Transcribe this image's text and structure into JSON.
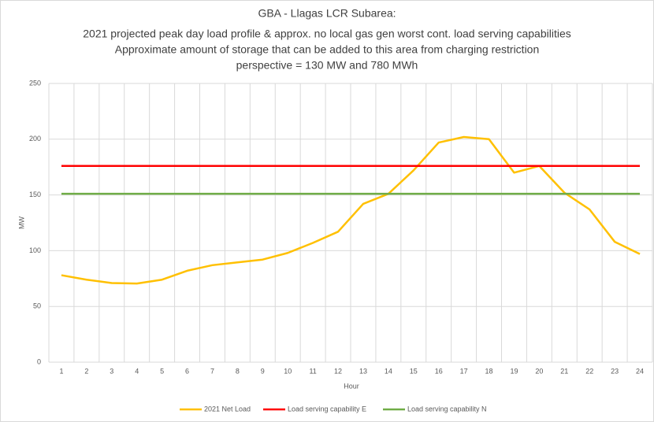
{
  "chart_data": {
    "type": "line",
    "title": "GBA - Llagas LCR Subarea:",
    "subtitle": [
      "2021 projected peak day load profile & approx. no local gas gen worst cont. load serving capabilities",
      "Approximate amount of storage that can be added to this area from charging restriction",
      "perspective = 130 MW and 780 MWh"
    ],
    "x_label": "Hour",
    "y_label": "MW",
    "categories": [
      "1",
      "2",
      "3",
      "4",
      "5",
      "6",
      "7",
      "8",
      "9",
      "10",
      "11",
      "12",
      "13",
      "14",
      "15",
      "16",
      "17",
      "18",
      "19",
      "20",
      "21",
      "22",
      "23",
      "24"
    ],
    "series": [
      {
        "name": "2021 Net Load",
        "color": "#FFC000",
        "values": [
          78,
          74,
          71,
          70.5,
          74,
          82,
          87,
          89.5,
          92,
          98,
          107,
          117,
          142,
          151,
          172,
          197,
          202,
          200,
          170,
          176,
          152,
          137,
          108,
          97
        ]
      },
      {
        "name": "Load serving capability E",
        "color": "#FF0000",
        "values": [
          176,
          176,
          176,
          176,
          176,
          176,
          176,
          176,
          176,
          176,
          176,
          176,
          176,
          176,
          176,
          176,
          176,
          176,
          176,
          176,
          176,
          176,
          176,
          176
        ]
      },
      {
        "name": "Load serving capability N",
        "color": "#70AD47",
        "values": [
          151,
          151,
          151,
          151,
          151,
          151,
          151,
          151,
          151,
          151,
          151,
          151,
          151,
          151,
          151,
          151,
          151,
          151,
          151,
          151,
          151,
          151,
          151,
          151
        ]
      }
    ],
    "ylim": [
      0,
      250
    ],
    "yticks": [
      0,
      50,
      100,
      150,
      200,
      250
    ],
    "grid": true,
    "legend": "bottom"
  }
}
